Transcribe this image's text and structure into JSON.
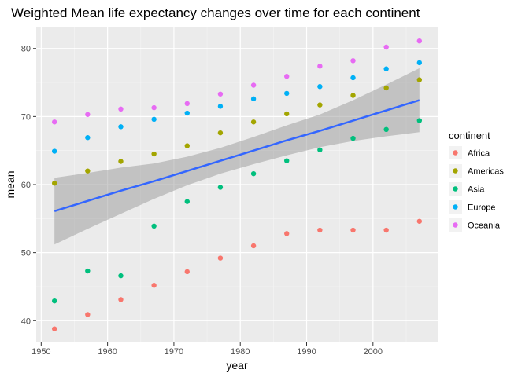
{
  "chart_data": {
    "type": "scatter",
    "title": "Weighted Mean life expectancy changes over time for each continent",
    "xlabel": "year",
    "ylabel": "mean",
    "xlim": [
      1949.25,
      2009.75
    ],
    "ylim": [
      36.8,
      83.2
    ],
    "x_ticks": [
      1950,
      1960,
      1970,
      1980,
      1990,
      2000
    ],
    "y_ticks": [
      40,
      50,
      60,
      70,
      80
    ],
    "grid": true,
    "legend": {
      "title": "continent",
      "placement": "right"
    },
    "x": [
      1952,
      1957,
      1962,
      1967,
      1972,
      1977,
      1982,
      1987,
      1992,
      1997,
      2002,
      2007
    ],
    "series": [
      {
        "name": "Africa",
        "color": "#F8766D",
        "values": [
          38.8,
          40.9,
          43.1,
          45.2,
          47.2,
          49.2,
          51.0,
          52.8,
          53.3,
          53.3,
          53.3,
          54.6
        ]
      },
      {
        "name": "Americas",
        "color": "#A3A500",
        "values": [
          60.2,
          62.0,
          63.4,
          64.5,
          65.7,
          67.6,
          69.2,
          70.4,
          71.7,
          73.1,
          74.2,
          75.4
        ]
      },
      {
        "name": "Asia",
        "color": "#00BF7D",
        "values": [
          42.9,
          47.3,
          46.6,
          53.9,
          57.5,
          59.6,
          61.6,
          63.5,
          65.1,
          66.8,
          68.1,
          69.4
        ]
      },
      {
        "name": "Europe",
        "color": "#00B0F6",
        "values": [
          64.9,
          66.9,
          68.5,
          69.6,
          70.5,
          71.5,
          72.6,
          73.4,
          74.4,
          75.7,
          77.0,
          77.9
        ]
      },
      {
        "name": "Oceania",
        "color": "#E76BF3",
        "values": [
          69.2,
          70.3,
          71.1,
          71.3,
          71.9,
          73.3,
          74.6,
          75.9,
          77.4,
          78.2,
          80.2,
          81.1
        ]
      }
    ],
    "trend": {
      "type": "linear",
      "color": "#3366FF",
      "band_color": "#999999",
      "x": [
        1952,
        1957,
        1962,
        1967,
        1972,
        1977,
        1982,
        1987,
        1992,
        1997,
        2002,
        2007
      ],
      "fit": [
        56.1,
        57.6,
        59.1,
        60.5,
        62.0,
        63.5,
        65.0,
        66.5,
        67.9,
        69.4,
        70.9,
        72.4
      ],
      "lower": [
        51.2,
        53.5,
        55.7,
        57.9,
        59.9,
        61.6,
        63.0,
        64.3,
        65.5,
        66.4,
        67.1,
        67.7
      ],
      "upper": [
        61.0,
        61.7,
        62.5,
        63.1,
        64.1,
        65.4,
        67.0,
        68.7,
        70.3,
        72.4,
        74.7,
        77.1
      ]
    }
  }
}
